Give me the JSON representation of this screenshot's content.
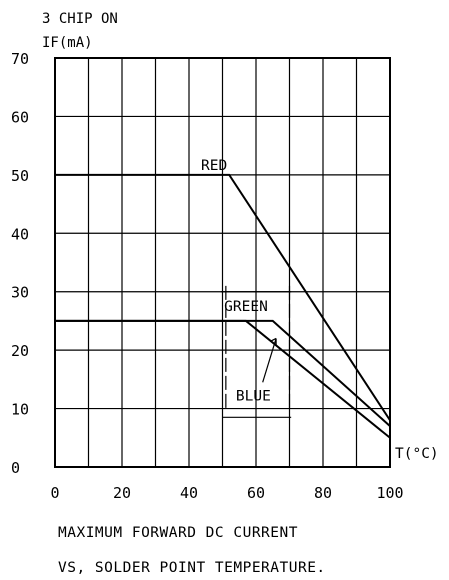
{
  "chart_data": {
    "type": "line",
    "title_lines": [
      "3 CHIP ON",
      "IF(mA)"
    ],
    "xlabel": "T(°C)",
    "ylabel": "IF(mA)",
    "caption_lines": [
      "MAXIMUM FORWARD DC CURRENT",
      "VS, SOLDER POINT TEMPERATURE."
    ],
    "xlim": [
      0,
      100
    ],
    "ylim": [
      0,
      70
    ],
    "x_ticks": [
      0,
      20,
      40,
      60,
      80,
      100
    ],
    "y_ticks": [
      0,
      10,
      20,
      30,
      40,
      50,
      60,
      70
    ],
    "grid": true,
    "series": [
      {
        "name": "RED",
        "x": [
          0,
          52,
          100
        ],
        "y": [
          50,
          50,
          8
        ]
      },
      {
        "name": "GREEN",
        "x": [
          0,
          65,
          100
        ],
        "y": [
          25,
          25,
          7
        ]
      },
      {
        "name": "BLUE",
        "x": [
          0,
          57,
          100
        ],
        "y": [
          25,
          25,
          5
        ]
      }
    ]
  }
}
